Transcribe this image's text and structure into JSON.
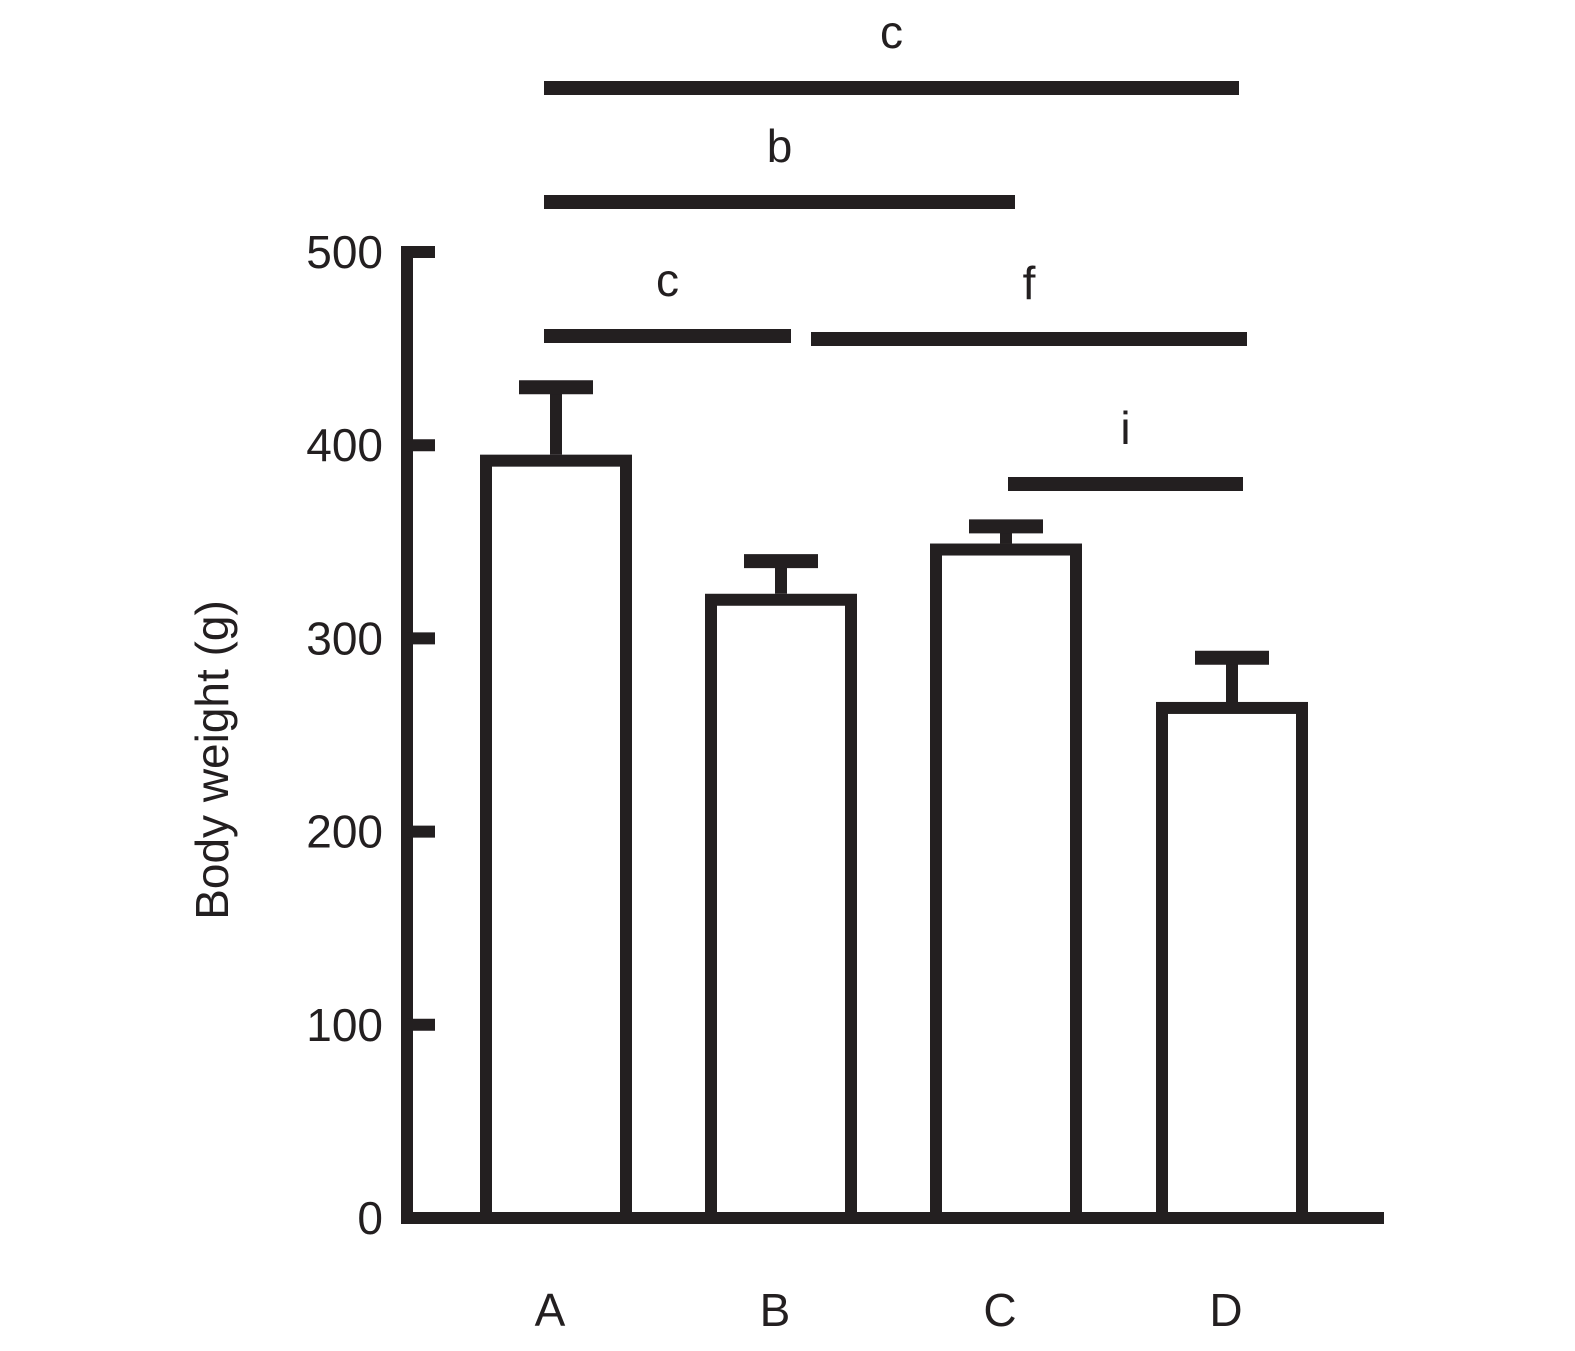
{
  "chart_data": {
    "type": "bar",
    "title": "",
    "xlabel": "",
    "ylabel": "Body weight (g)",
    "ylim": [
      0,
      500
    ],
    "yticks": [
      0,
      100,
      200,
      300,
      400,
      500
    ],
    "grid": false,
    "categories": [
      "A",
      "B",
      "C",
      "D"
    ],
    "values": [
      392,
      320,
      346,
      264
    ],
    "error_upper": [
      430,
      340,
      358,
      290
    ],
    "significance": [
      {
        "label": "c",
        "from": "A",
        "to": "D",
        "level": 3
      },
      {
        "label": "b",
        "from": "A",
        "to": "C",
        "level": 2
      },
      {
        "label": "c",
        "from": "A",
        "to": "B",
        "level": 1
      },
      {
        "label": "f",
        "from": "B",
        "to": "D",
        "level": 1
      },
      {
        "label": "i",
        "from": "C",
        "to": "D",
        "level": 0
      }
    ],
    "colors": {
      "stroke": "#231f20",
      "fill": "#ffffff"
    }
  }
}
